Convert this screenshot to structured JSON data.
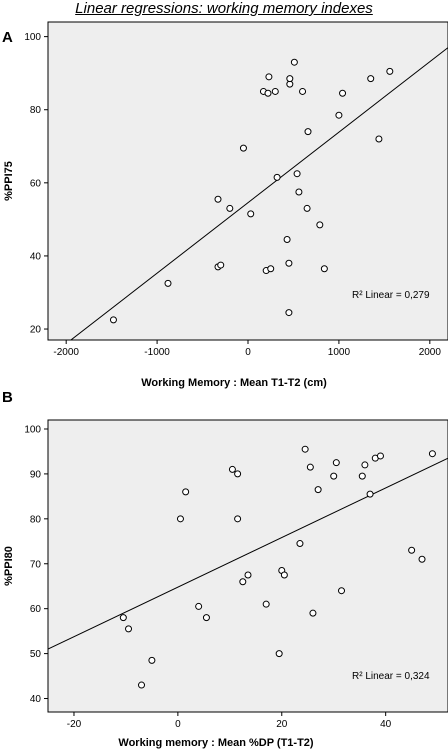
{
  "figure_title": "Linear regressions: working memory indexes",
  "chart_data": [
    {
      "panel": "A",
      "type": "scatter",
      "xlabel": "Working Memory : Mean T1-T2 (cm)",
      "ylabel": "%PPI75",
      "xlim": [
        -2200,
        2200
      ],
      "ylim": [
        17,
        104
      ],
      "xticks": [
        -2000,
        -1000,
        0,
        1000,
        2000
      ],
      "yticks": [
        20,
        40,
        60,
        80,
        100
      ],
      "xtick_labels": [
        "-2000",
        "-1000",
        "0",
        "1000",
        "2000"
      ],
      "ytick_labels": [
        "20",
        "40",
        "60",
        "80",
        "100"
      ],
      "r2_text": "R² Linear = 0,279",
      "fit_line": [
        [
          -2000,
          16
        ],
        [
          2200,
          97
        ]
      ],
      "points": [
        [
          -1480,
          22.5
        ],
        [
          -880,
          32.5
        ],
        [
          -330,
          37
        ],
        [
          -300,
          37.5
        ],
        [
          -330,
          55.5
        ],
        [
          -200,
          53
        ],
        [
          -50,
          69.5
        ],
        [
          30,
          51.5
        ],
        [
          170,
          85
        ],
        [
          200,
          36
        ],
        [
          220,
          84.5
        ],
        [
          230,
          89
        ],
        [
          250,
          36.5
        ],
        [
          300,
          85
        ],
        [
          320,
          61.5
        ],
        [
          430,
          44.5
        ],
        [
          450,
          24.5
        ],
        [
          450,
          38
        ],
        [
          460,
          87
        ],
        [
          460,
          88.5
        ],
        [
          510,
          93
        ],
        [
          540,
          62.5
        ],
        [
          560,
          57.5
        ],
        [
          600,
          85
        ],
        [
          650,
          53
        ],
        [
          660,
          74
        ],
        [
          790,
          48.5
        ],
        [
          840,
          36.5
        ],
        [
          1000,
          78.5
        ],
        [
          1040,
          84.5
        ],
        [
          1350,
          88.5
        ],
        [
          1440,
          72
        ],
        [
          1560,
          90.5
        ]
      ],
      "grid": false
    },
    {
      "panel": "B",
      "type": "scatter",
      "xlabel": "Working memory : Mean %DP (T1-T2)",
      "ylabel": "%PPI80",
      "xlim": [
        -25,
        52
      ],
      "ylim": [
        37,
        102
      ],
      "xticks": [
        -20,
        0,
        20,
        40
      ],
      "yticks": [
        40,
        50,
        60,
        70,
        80,
        90,
        100
      ],
      "xtick_labels": [
        "-20",
        "0",
        "20",
        "40"
      ],
      "ytick_labels": [
        "40",
        "50",
        "60",
        "70",
        "80",
        "90",
        "100"
      ],
      "r2_text": "R² Linear = 0,324",
      "fit_line": [
        [
          -25,
          51
        ],
        [
          52,
          93.5
        ]
      ],
      "points": [
        [
          -10.5,
          58
        ],
        [
          -9.5,
          55.5
        ],
        [
          -7,
          43
        ],
        [
          -5,
          48.5
        ],
        [
          0.5,
          80
        ],
        [
          1.5,
          86
        ],
        [
          4,
          60.5
        ],
        [
          5.5,
          58
        ],
        [
          10.5,
          91
        ],
        [
          11.5,
          90
        ],
        [
          11.5,
          80
        ],
        [
          12.5,
          66
        ],
        [
          13.5,
          67.5
        ],
        [
          17,
          61
        ],
        [
          19.5,
          50
        ],
        [
          20,
          68.5
        ],
        [
          20.5,
          67.5
        ],
        [
          23.5,
          74.5
        ],
        [
          24.5,
          95.5
        ],
        [
          25.5,
          91.5
        ],
        [
          26,
          59
        ],
        [
          27,
          86.5
        ],
        [
          30,
          89.5
        ],
        [
          30.5,
          92.5
        ],
        [
          31.5,
          64
        ],
        [
          35.5,
          89.5
        ],
        [
          36,
          92
        ],
        [
          37,
          85.5
        ],
        [
          38,
          93.5
        ],
        [
          39,
          94
        ],
        [
          45,
          73
        ],
        [
          47,
          71
        ],
        [
          49,
          94.5
        ]
      ],
      "grid": false
    }
  ],
  "colors": {
    "plot_background": "#eeeeee",
    "frame": "#000000",
    "point_fill": "#ffffff",
    "point_stroke": "#000000",
    "fit_line": "#000000"
  }
}
